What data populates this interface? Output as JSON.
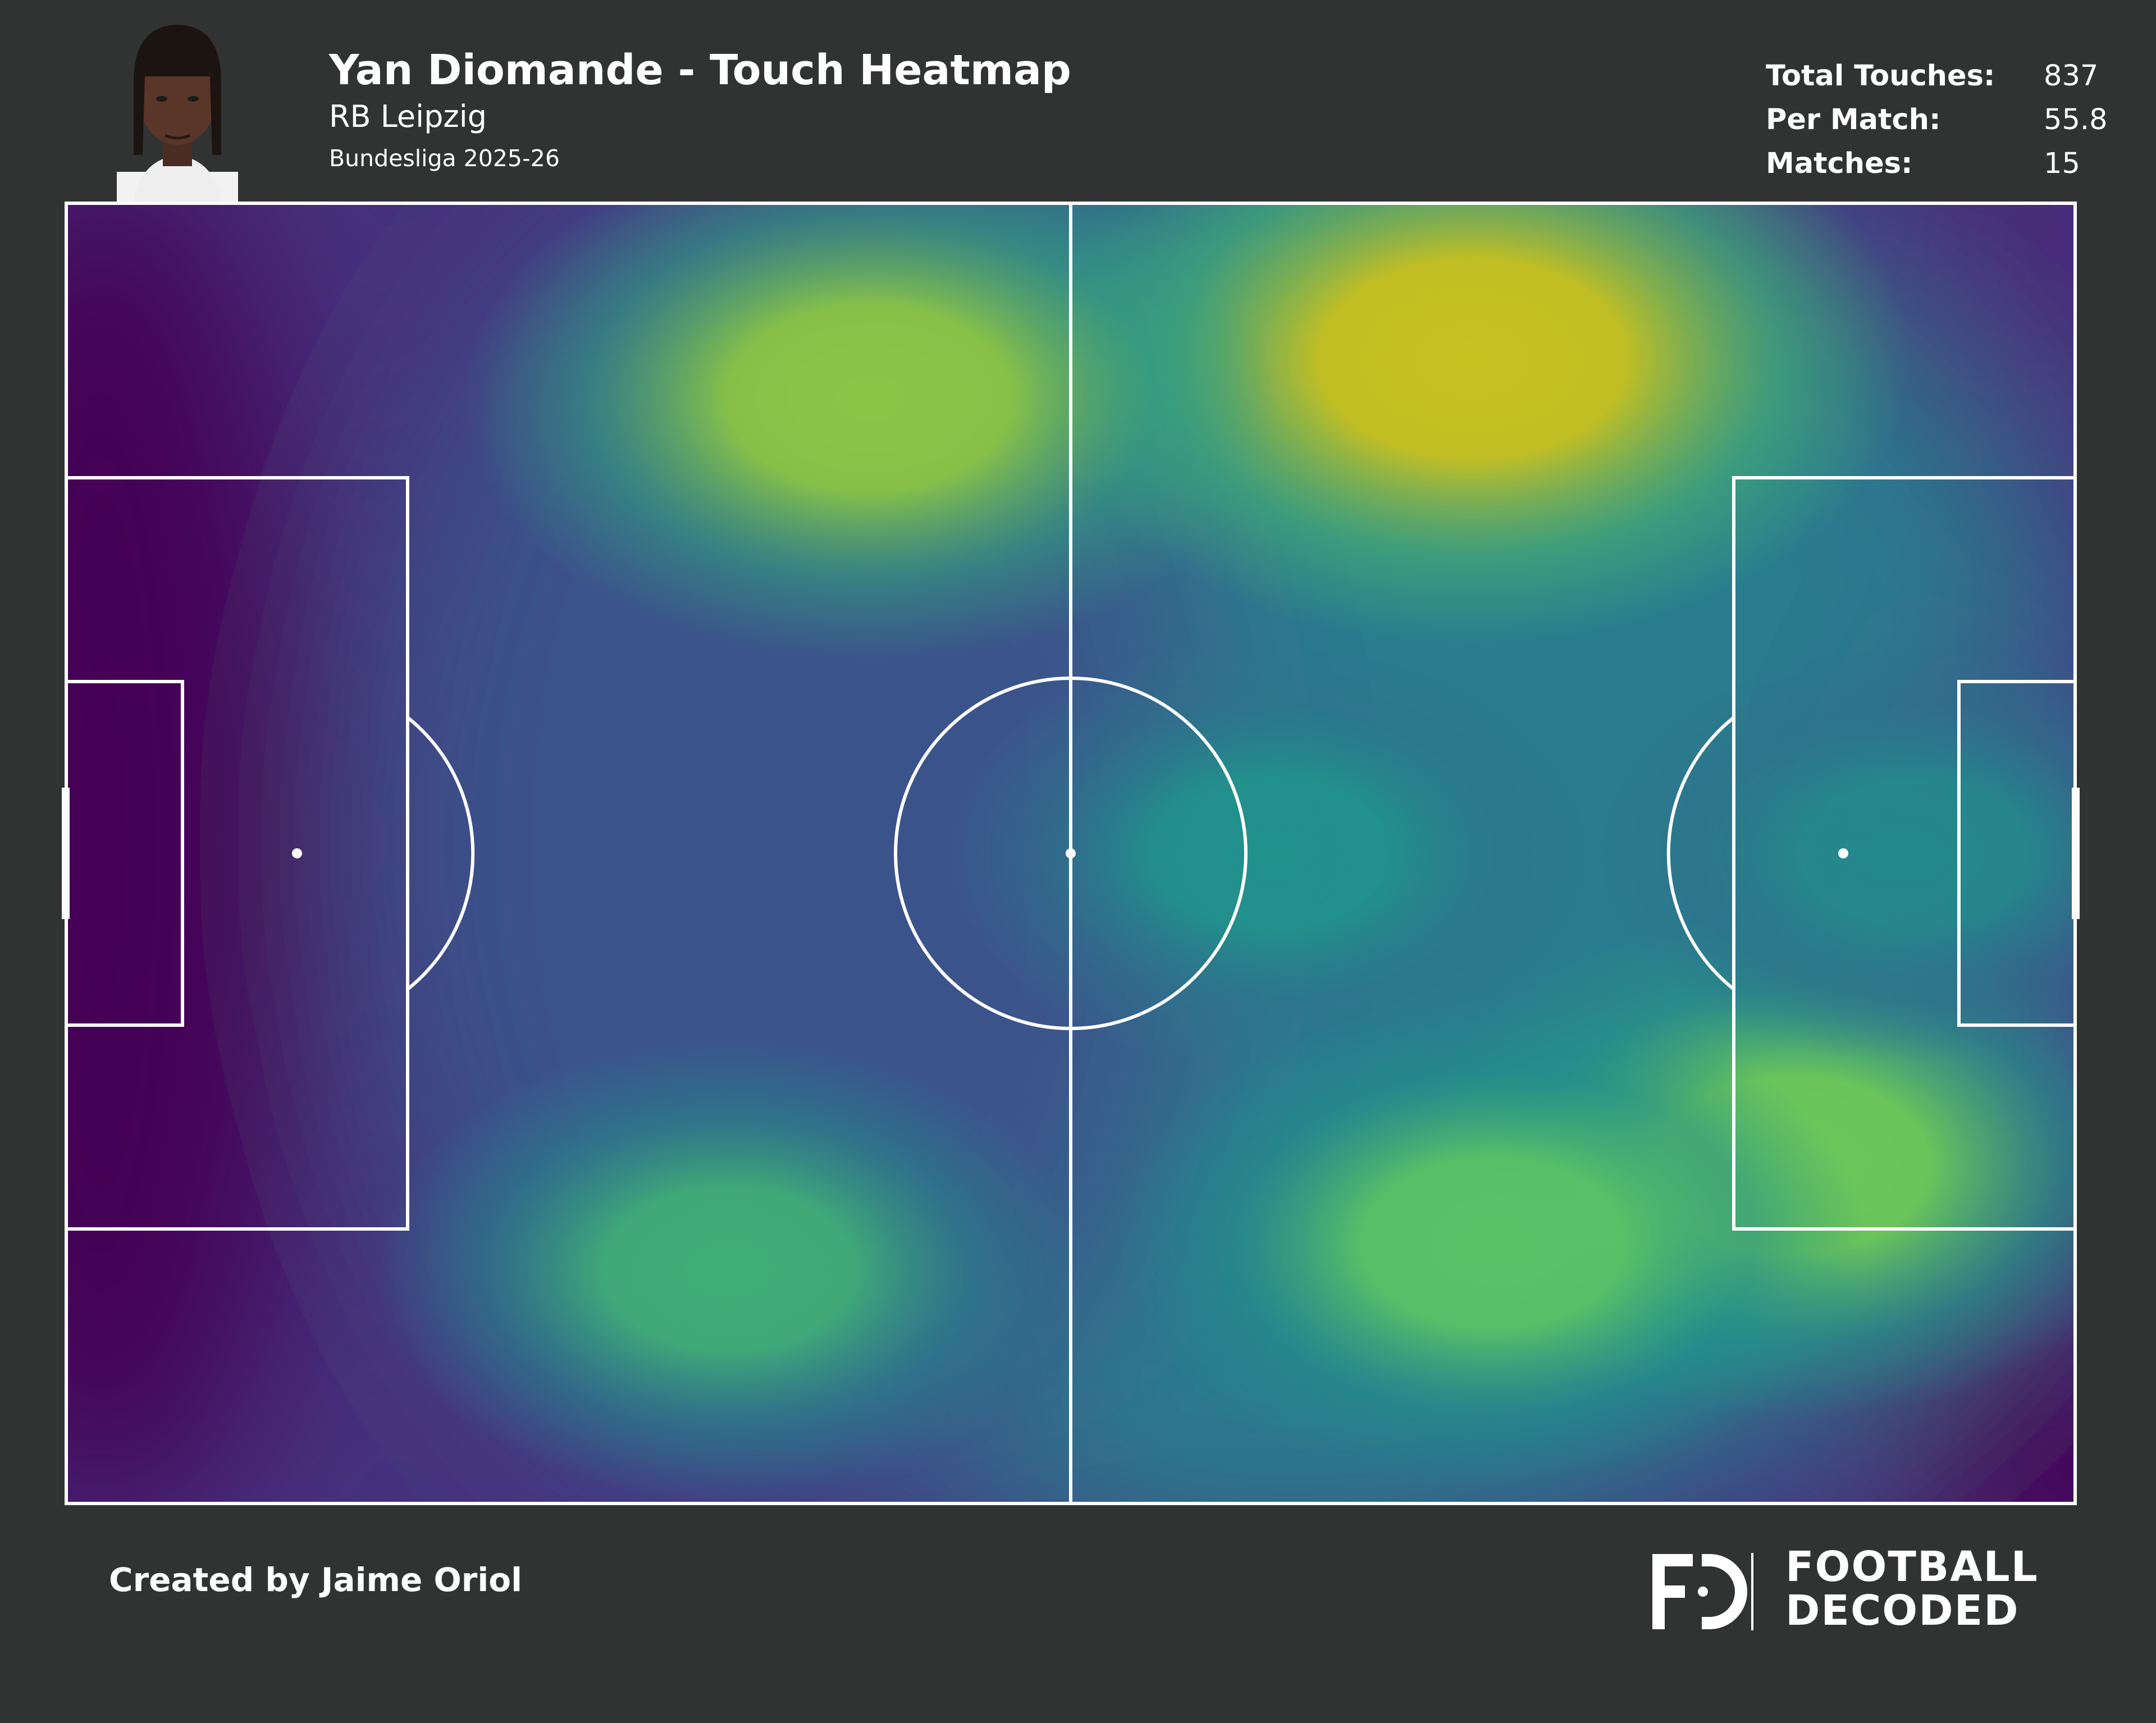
{
  "header": {
    "title": "Yan Diomande - Touch Heatmap",
    "team": "RB Leipzig",
    "competition": "Bundesliga 2025-26"
  },
  "stats": [
    {
      "label": "Total Touches:",
      "value": "837"
    },
    {
      "label": "Per Match:",
      "value": "55.8"
    },
    {
      "label": "Matches:",
      "value": "15"
    }
  ],
  "footer": {
    "credit": "Created by Jaime Oriol",
    "brand_line1": "FOOTBALL",
    "brand_line2": "DECODED",
    "brand_mark": "FD"
  },
  "colors": {
    "background": "#313332",
    "pitch_lines": "#ffffff",
    "colormap": [
      "#440154",
      "#3b528b",
      "#21918c",
      "#5ec962",
      "#c8c21f"
    ]
  },
  "chart_data": {
    "type": "heatmap",
    "title": "Yan Diomande - Touch Heatmap",
    "description_of_scale": "viridis density, purple = low, yellow = high",
    "pitch_length": 100,
    "pitch_width": 100,
    "hotspots": [
      {
        "x": 70,
        "y": 12,
        "intensity": 1.0
      },
      {
        "x": 40,
        "y": 15,
        "intensity": 0.8
      },
      {
        "x": 86,
        "y": 74,
        "intensity": 0.7
      },
      {
        "x": 71,
        "y": 80,
        "intensity": 0.62
      },
      {
        "x": 33,
        "y": 82,
        "intensity": 0.5
      },
      {
        "x": 60,
        "y": 50,
        "intensity": 0.35
      },
      {
        "x": 92,
        "y": 50,
        "intensity": 0.3
      }
    ]
  }
}
